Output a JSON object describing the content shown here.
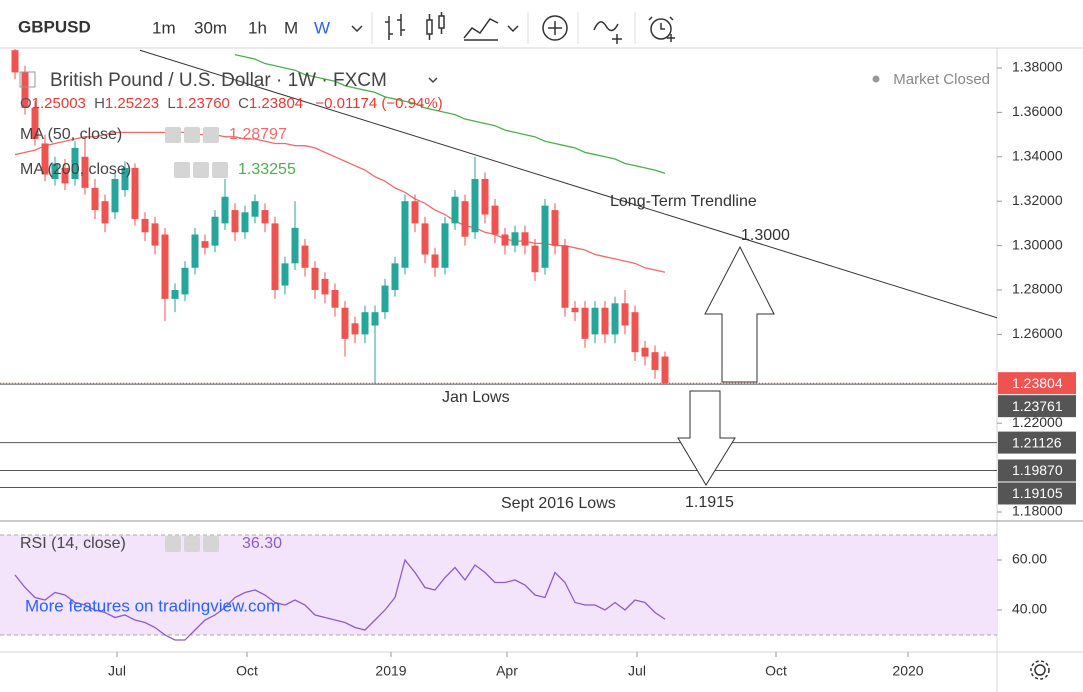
{
  "toolbar": {
    "symbol": "GBPUSD",
    "intervals": [
      "1m",
      "30m",
      "1h",
      "M",
      "W"
    ]
  },
  "legend": {
    "title": "British Pound / U.S. Dollar · 1W · FXCM",
    "status": "Market Closed",
    "ohlc": [
      {
        "label": "O",
        "text": "1.25003"
      },
      {
        "label": "H",
        "text": "1.25223"
      },
      {
        "label": "L",
        "text": "1.23760"
      },
      {
        "label": "C",
        "text": "1.23804"
      }
    ],
    "change": "−0.01174 (−0.94%)"
  },
  "annotations": [
    "Long-Term Trendline",
    "1.3000",
    "Jan Lows",
    "Sept 2016 Lows",
    "1.1915"
  ],
  "watermark": "More features on tradingview.com",
  "chart_data": [
    {
      "type": "candlestick",
      "x": [
        0,
        1,
        2,
        3,
        4,
        5,
        6,
        7,
        8,
        9,
        10,
        11,
        12,
        13,
        14,
        15,
        16,
        17,
        18,
        19,
        20,
        21,
        22,
        23,
        24,
        25,
        26,
        27,
        28,
        29,
        30,
        31,
        32,
        33,
        34,
        35,
        36,
        37,
        38,
        39,
        40,
        41,
        42,
        43,
        44,
        45,
        46,
        47,
        48,
        49,
        50,
        51,
        52,
        53,
        54,
        55,
        56,
        57,
        58,
        59,
        60,
        61,
        62,
        63,
        64,
        65
      ],
      "open": [
        1.388,
        1.378,
        1.362,
        1.346,
        1.33,
        1.335,
        1.33,
        1.34,
        1.326,
        1.32,
        1.315,
        1.325,
        1.335,
        1.312,
        1.31,
        1.305,
        1.276,
        1.278,
        1.29,
        1.302,
        1.3,
        1.31,
        1.316,
        1.306,
        1.313,
        1.316,
        1.31,
        1.282,
        1.292,
        1.3,
        1.29,
        1.285,
        1.28,
        1.272,
        1.265,
        1.26,
        1.264,
        1.27,
        1.28,
        1.29,
        1.32,
        1.31,
        1.296,
        1.29,
        1.31,
        1.32,
        1.306,
        1.33,
        1.318,
        1.305,
        1.3,
        1.306,
        1.3,
        1.29,
        1.316,
        1.3,
        1.272,
        1.272,
        1.26,
        1.272,
        1.26,
        1.274,
        1.27,
        1.254,
        1.252,
        1.25003
      ],
      "high": [
        1.39,
        1.381,
        1.365,
        1.35,
        1.34,
        1.339,
        1.347,
        1.348,
        1.33,
        1.323,
        1.333,
        1.338,
        1.337,
        1.315,
        1.313,
        1.308,
        1.283,
        1.293,
        1.308,
        1.305,
        1.316,
        1.33,
        1.319,
        1.318,
        1.323,
        1.319,
        1.313,
        1.295,
        1.32,
        1.303,
        1.293,
        1.288,
        1.283,
        1.275,
        1.268,
        1.273,
        1.273,
        1.285,
        1.295,
        1.323,
        1.323,
        1.313,
        1.299,
        1.313,
        1.325,
        1.323,
        1.34,
        1.333,
        1.321,
        1.308,
        1.309,
        1.309,
        1.303,
        1.321,
        1.319,
        1.303,
        1.275,
        1.275,
        1.275,
        1.275,
        1.277,
        1.28,
        1.273,
        1.257,
        1.255,
        1.25223
      ],
      "low": [
        1.375,
        1.359,
        1.345,
        1.329,
        1.327,
        1.325,
        1.327,
        1.323,
        1.312,
        1.306,
        1.312,
        1.322,
        1.309,
        1.302,
        1.296,
        1.266,
        1.27,
        1.275,
        1.287,
        1.296,
        1.297,
        1.307,
        1.302,
        1.303,
        1.31,
        1.306,
        1.276,
        1.278,
        1.289,
        1.286,
        1.276,
        1.274,
        1.268,
        1.25,
        1.256,
        1.256,
        1.2376,
        1.267,
        1.277,
        1.287,
        1.306,
        1.292,
        1.286,
        1.287,
        1.307,
        1.3,
        1.303,
        1.31,
        1.301,
        1.296,
        1.297,
        1.296,
        1.284,
        1.287,
        1.296,
        1.268,
        1.266,
        1.254,
        1.256,
        1.256,
        1.256,
        1.26,
        1.248,
        1.246,
        1.24,
        1.2376
      ],
      "close": [
        1.378,
        1.362,
        1.348,
        1.332,
        1.337,
        1.328,
        1.344,
        1.326,
        1.316,
        1.31,
        1.33,
        1.335,
        1.312,
        1.306,
        1.3,
        1.276,
        1.28,
        1.29,
        1.305,
        1.299,
        1.313,
        1.322,
        1.306,
        1.315,
        1.32,
        1.31,
        1.28,
        1.292,
        1.308,
        1.29,
        1.28,
        1.278,
        1.272,
        1.258,
        1.26,
        1.27,
        1.27,
        1.282,
        1.292,
        1.32,
        1.31,
        1.296,
        1.29,
        1.31,
        1.322,
        1.304,
        1.33,
        1.314,
        1.305,
        1.3,
        1.306,
        1.3,
        1.288,
        1.318,
        1.3,
        1.272,
        1.27,
        1.258,
        1.272,
        1.26,
        1.274,
        1.264,
        1.252,
        1.25,
        1.244,
        1.23804
      ],
      "up_color": "#26a69a",
      "down_color": "#ef5350",
      "xlim": [
        -1.5,
        98.2
      ],
      "xticks": [
        {
          "value": 10.2,
          "label": "Jul"
        },
        {
          "value": 23.2,
          "label": "Oct"
        },
        {
          "value": 37.6,
          "label": "2019"
        },
        {
          "value": 49.2,
          "label": "Apr"
        },
        {
          "value": 62.2,
          "label": "Jul"
        },
        {
          "value": 76.1,
          "label": "Oct"
        },
        {
          "value": 89.3,
          "label": "2020"
        }
      ],
      "ylim": [
        1.1764,
        1.389
      ],
      "yticks": [
        {
          "value": 1.38,
          "label": "1.38000"
        },
        {
          "value": 1.36,
          "label": "1.36000"
        },
        {
          "value": 1.34,
          "label": "1.34000"
        },
        {
          "value": 1.32,
          "label": "1.32000"
        },
        {
          "value": 1.3,
          "label": "1.30000"
        },
        {
          "value": 1.28,
          "label": "1.28000"
        },
        {
          "value": 1.26,
          "label": "1.26000"
        },
        {
          "value": 1.22,
          "label": "1.22000"
        },
        {
          "value": 1.18,
          "label": "1.18000"
        }
      ],
      "series": [
        {
          "name": "MA (50, close)",
          "color": "#ef6b6b",
          "value_label": "1.28797",
          "values": [
            1.341,
            1.342,
            1.343,
            1.345,
            1.346,
            1.347,
            1.348,
            1.349,
            1.349,
            1.35,
            1.351,
            1.351,
            1.351,
            1.351,
            1.351,
            1.351,
            1.351,
            1.351,
            1.35,
            1.35,
            1.35,
            1.349,
            1.349,
            1.348,
            1.348,
            1.347,
            1.346,
            1.346,
            1.345,
            1.345,
            1.344,
            1.342,
            1.34,
            1.338,
            1.336,
            1.334,
            1.331,
            1.329,
            1.326,
            1.324,
            1.321,
            1.319,
            1.316,
            1.314,
            1.311,
            1.309,
            1.308,
            1.306,
            1.305,
            1.303,
            1.302,
            1.302,
            1.301,
            1.301,
            1.3,
            1.3,
            1.299,
            1.298,
            1.296,
            1.295,
            1.294,
            1.293,
            1.292,
            1.29,
            1.289,
            1.28797
          ]
        },
        {
          "name": "MA (200, close)",
          "color": "#4caf50",
          "value_label": "1.33255",
          "values": [
            null,
            null,
            null,
            null,
            null,
            null,
            null,
            null,
            null,
            null,
            null,
            null,
            null,
            null,
            null,
            null,
            null,
            null,
            null,
            null,
            null,
            null,
            1.386,
            1.385,
            1.384,
            1.382,
            1.381,
            1.38,
            1.379,
            1.377,
            1.376,
            1.375,
            1.374,
            1.372,
            1.371,
            1.37,
            1.369,
            1.367,
            1.366,
            1.365,
            1.364,
            1.362,
            1.361,
            1.36,
            1.359,
            1.357,
            1.356,
            1.355,
            1.354,
            1.352,
            1.351,
            1.35,
            1.349,
            1.347,
            1.346,
            1.345,
            1.344,
            1.342,
            1.341,
            1.34,
            1.339,
            1.337,
            1.336,
            1.335,
            1.334,
            1.33255
          ]
        }
      ],
      "levels": [
        {
          "value": 1.23804,
          "label": "1.23804",
          "color": "#ef5350",
          "style": "dotted"
        },
        {
          "value": 1.23761,
          "label": "1.23761",
          "color": "#555555",
          "style": "solid"
        },
        {
          "value": 1.21126,
          "label": "1.21126",
          "color": "#555555",
          "style": "solid"
        },
        {
          "value": 1.1987,
          "label": "1.19870",
          "color": "#555555",
          "style": "solid"
        },
        {
          "value": 1.19105,
          "label": "1.19105",
          "color": "#555555",
          "style": "solid"
        }
      ],
      "trendline": {
        "x": [
          12.5,
          98.2
        ],
        "y": [
          1.388,
          1.2675
        ]
      }
    },
    {
      "type": "line",
      "title": "RSI (14, close)",
      "x": [
        0,
        1,
        2,
        3,
        4,
        5,
        6,
        7,
        8,
        9,
        10,
        11,
        12,
        13,
        14,
        15,
        16,
        17,
        18,
        19,
        20,
        21,
        22,
        23,
        24,
        25,
        26,
        27,
        28,
        29,
        30,
        31,
        32,
        33,
        34,
        35,
        36,
        37,
        38,
        39,
        40,
        41,
        42,
        43,
        44,
        45,
        46,
        47,
        48,
        49,
        50,
        51,
        52,
        53,
        54,
        55,
        56,
        57,
        58,
        59,
        60,
        61,
        62,
        63,
        64,
        65
      ],
      "values": [
        54,
        49,
        45,
        44,
        47,
        46,
        43,
        42,
        40,
        39,
        37,
        38,
        36,
        35,
        33,
        30,
        28,
        28,
        32,
        36,
        38,
        41,
        45,
        47,
        48,
        46,
        43,
        42,
        44,
        42,
        38,
        37,
        36,
        35,
        33,
        32,
        36,
        40,
        45,
        60,
        55,
        49,
        48,
        53,
        57,
        52,
        58,
        55,
        51,
        51,
        52,
        50,
        46,
        45,
        55,
        51,
        43,
        42,
        42,
        40,
        43,
        40,
        44,
        43,
        39,
        36.3
      ],
      "value_label": "36.30",
      "color": "#8e5bc8",
      "band": [
        30,
        70
      ],
      "band_color": "#f3e4fb",
      "ylim": [
        23.2,
        75.2
      ],
      "yticks": [
        {
          "value": 60,
          "label": "60.00"
        },
        {
          "value": 40,
          "label": "40.00"
        }
      ]
    }
  ]
}
